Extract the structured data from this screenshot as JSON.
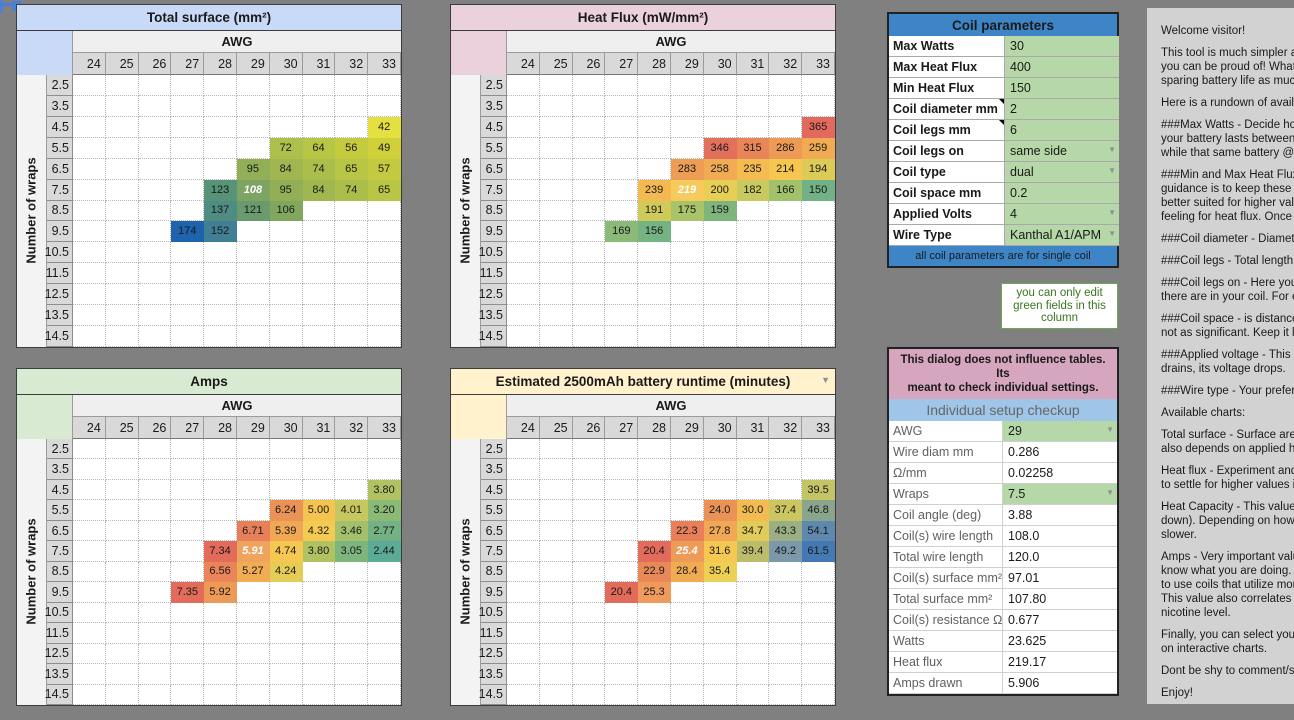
{
  "selection_marker": {
    "color": "#4a7fd4"
  },
  "tables": [
    {
      "id": "total-surface",
      "title": "Total surface (mm²)",
      "accent": "#c9daf8",
      "awg_label": "AWG",
      "side_label": "Number of wraps",
      "columns": [
        "24",
        "25",
        "26",
        "27",
        "28",
        "29",
        "30",
        "31",
        "32",
        "33"
      ],
      "rows": [
        "2.5",
        "3.5",
        "4.5",
        "5.5",
        "6.5",
        "7.5",
        "8.5",
        "9.5",
        "10.5",
        "11.5",
        "12.5",
        "13.5",
        "14.5"
      ],
      "filter_arrow": false,
      "selected": [
        "7.5",
        "29"
      ],
      "cells": [
        [
          "4.5",
          "33",
          "42",
          "#e4e03f"
        ],
        [
          "5.5",
          "30",
          "72",
          "#adc04b"
        ],
        [
          "5.5",
          "31",
          "64",
          "#b9c645"
        ],
        [
          "5.5",
          "32",
          "56",
          "#c5cb3f"
        ],
        [
          "5.5",
          "33",
          "49",
          "#cfd03a"
        ],
        [
          "6.5",
          "29",
          "95",
          "#92ae56"
        ],
        [
          "6.5",
          "30",
          "84",
          "#9fb651"
        ],
        [
          "6.5",
          "31",
          "74",
          "#abbe4b"
        ],
        [
          "6.5",
          "32",
          "65",
          "#b8c545"
        ],
        [
          "6.5",
          "33",
          "57",
          "#c3ca40"
        ],
        [
          "7.5",
          "28",
          "123",
          "#579377"
        ],
        [
          "7.5",
          "29",
          "108",
          "#7ea464"
        ],
        [
          "7.5",
          "30",
          "95",
          "#92ae56"
        ],
        [
          "7.5",
          "31",
          "84",
          "#9fb651"
        ],
        [
          "7.5",
          "32",
          "74",
          "#abbe4b"
        ],
        [
          "7.5",
          "33",
          "65",
          "#b8c545"
        ],
        [
          "8.5",
          "28",
          "137",
          "#4e8c84"
        ],
        [
          "8.5",
          "29",
          "121",
          "#6a9b6f"
        ],
        [
          "8.5",
          "30",
          "106",
          "#81a75f"
        ],
        [
          "9.5",
          "27",
          "174",
          "#1e63ae"
        ],
        [
          "9.5",
          "28",
          "152",
          "#417f94"
        ]
      ]
    },
    {
      "id": "heat-flux",
      "title": "Heat Flux (mW/mm²)",
      "accent": "#ead1dc",
      "awg_label": "AWG",
      "side_label": "Number of wraps",
      "columns": [
        "24",
        "25",
        "26",
        "27",
        "28",
        "29",
        "30",
        "31",
        "32",
        "33"
      ],
      "rows": [
        "2.5",
        "3.5",
        "4.5",
        "5.5",
        "6.5",
        "7.5",
        "8.5",
        "9.5",
        "10.5",
        "11.5",
        "12.5",
        "13.5",
        "14.5"
      ],
      "filter_arrow": false,
      "selected": [
        "7.5",
        "29"
      ],
      "cells": [
        [
          "4.5",
          "33",
          "365",
          "#e26a5d"
        ],
        [
          "5.5",
          "30",
          "346",
          "#e2705c"
        ],
        [
          "5.5",
          "31",
          "315",
          "#e8865a"
        ],
        [
          "5.5",
          "32",
          "286",
          "#ed9a56"
        ],
        [
          "5.5",
          "33",
          "259",
          "#f1ac53"
        ],
        [
          "6.5",
          "29",
          "283",
          "#ee9d55"
        ],
        [
          "6.5",
          "30",
          "258",
          "#f1ac53"
        ],
        [
          "6.5",
          "31",
          "235",
          "#f4bb51"
        ],
        [
          "6.5",
          "32",
          "214",
          "#f6c750"
        ],
        [
          "6.5",
          "33",
          "194",
          "#dccb56"
        ],
        [
          "7.5",
          "28",
          "239",
          "#f4b951"
        ],
        [
          "7.5",
          "29",
          "219",
          "#f7ca5c"
        ],
        [
          "7.5",
          "30",
          "200",
          "#e7ce54"
        ],
        [
          "7.5",
          "31",
          "182",
          "#c8c95f"
        ],
        [
          "7.5",
          "32",
          "166",
          "#a2c16b"
        ],
        [
          "7.5",
          "33",
          "150",
          "#72b185"
        ],
        [
          "8.5",
          "28",
          "191",
          "#d0ca5a"
        ],
        [
          "8.5",
          "29",
          "175",
          "#a9c368"
        ],
        [
          "8.5",
          "30",
          "159",
          "#7fb57d"
        ],
        [
          "9.5",
          "27",
          "169",
          "#8bb976"
        ],
        [
          "9.5",
          "28",
          "156",
          "#76b382"
        ]
      ]
    },
    {
      "id": "amps",
      "title": "Amps",
      "accent": "#d9ead3",
      "awg_label": "AWG",
      "side_label": "Number of wraps",
      "columns": [
        "24",
        "25",
        "26",
        "27",
        "28",
        "29",
        "30",
        "31",
        "32",
        "33"
      ],
      "rows": [
        "2.5",
        "3.5",
        "4.5",
        "5.5",
        "6.5",
        "7.5",
        "8.5",
        "9.5",
        "10.5",
        "11.5",
        "12.5",
        "13.5",
        "14.5"
      ],
      "filter_arrow": false,
      "selected": [
        "7.5",
        "29"
      ],
      "cells": [
        [
          "4.5",
          "33",
          "3.80",
          "#b1c263"
        ],
        [
          "5.5",
          "30",
          "6.24",
          "#eb9356"
        ],
        [
          "5.5",
          "31",
          "5.00",
          "#f5c350"
        ],
        [
          "5.5",
          "32",
          "4.01",
          "#c6c75f"
        ],
        [
          "5.5",
          "33",
          "3.20",
          "#8bb976"
        ],
        [
          "6.5",
          "29",
          "6.71",
          "#e78059"
        ],
        [
          "6.5",
          "30",
          "5.39",
          "#f0a854"
        ],
        [
          "6.5",
          "31",
          "4.32",
          "#f4ca52"
        ],
        [
          "6.5",
          "32",
          "3.46",
          "#a3c06c"
        ],
        [
          "6.5",
          "33",
          "2.77",
          "#74b285"
        ],
        [
          "7.5",
          "28",
          "7.34",
          "#e26b5c"
        ],
        [
          "7.5",
          "29",
          "5.91",
          "#efa35c"
        ],
        [
          "7.5",
          "30",
          "4.74",
          "#f6c851"
        ],
        [
          "7.5",
          "31",
          "3.80",
          "#b1c263"
        ],
        [
          "7.5",
          "32",
          "3.05",
          "#7eb57d"
        ],
        [
          "7.5",
          "33",
          "2.44",
          "#5cab97"
        ],
        [
          "8.5",
          "28",
          "6.56",
          "#e98558"
        ],
        [
          "8.5",
          "29",
          "5.27",
          "#f1ad53"
        ],
        [
          "8.5",
          "30",
          "4.24",
          "#e5cd55"
        ],
        [
          "9.5",
          "27",
          "7.35",
          "#e26b5c"
        ],
        [
          "9.5",
          "28",
          "5.92",
          "#ed9a56"
        ]
      ]
    },
    {
      "id": "battery-runtime",
      "title": "Estimated 2500mAh battery runtime (minutes)",
      "accent": "#fff2cc",
      "awg_label": "AWG",
      "side_label": "Number of wraps",
      "columns": [
        "24",
        "25",
        "26",
        "27",
        "28",
        "29",
        "30",
        "31",
        "32",
        "33"
      ],
      "rows": [
        "2.5",
        "3.5",
        "4.5",
        "5.5",
        "6.5",
        "7.5",
        "8.5",
        "9.5",
        "10.5",
        "11.5",
        "12.5",
        "13.5",
        "14.5"
      ],
      "filter_arrow": true,
      "selected": [
        "7.5",
        "29"
      ],
      "cells": [
        [
          "4.5",
          "33",
          "39.5",
          "#c2c465"
        ],
        [
          "5.5",
          "30",
          "24.0",
          "#eb9356"
        ],
        [
          "5.5",
          "31",
          "30.0",
          "#f3bc53"
        ],
        [
          "5.5",
          "32",
          "37.4",
          "#cbc661"
        ],
        [
          "5.5",
          "33",
          "46.8",
          "#8aa58e"
        ],
        [
          "6.5",
          "29",
          "22.3",
          "#e87f59"
        ],
        [
          "6.5",
          "30",
          "27.8",
          "#f0a854"
        ],
        [
          "6.5",
          "31",
          "34.7",
          "#e2cb58"
        ],
        [
          "6.5",
          "32",
          "43.3",
          "#9cae83"
        ],
        [
          "6.5",
          "33",
          "54.1",
          "#5f88ae"
        ],
        [
          "7.5",
          "28",
          "20.4",
          "#e26b5c"
        ],
        [
          "7.5",
          "29",
          "25.4",
          "#ee9b58"
        ],
        [
          "7.5",
          "30",
          "31.6",
          "#f5c853"
        ],
        [
          "7.5",
          "31",
          "39.4",
          "#bcbd6c"
        ],
        [
          "7.5",
          "32",
          "49.2",
          "#7b99a9"
        ],
        [
          "7.5",
          "33",
          "61.5",
          "#4579b4"
        ],
        [
          "8.5",
          "28",
          "22.9",
          "#e98957"
        ],
        [
          "8.5",
          "29",
          "28.4",
          "#f1ac53"
        ],
        [
          "8.5",
          "30",
          "35.4",
          "#eed054"
        ],
        [
          "9.5",
          "27",
          "20.4",
          "#e26b5c"
        ],
        [
          "9.5",
          "28",
          "25.3",
          "#f09a5e"
        ]
      ]
    }
  ],
  "coil_parameters": {
    "title": "Coil parameters",
    "header_bg": "#3d85c6",
    "editable_bg": "#b6d7a8",
    "rows": [
      {
        "label": "Max Watts",
        "value": "30",
        "editable": true,
        "dropdown": false,
        "comment": false
      },
      {
        "label": "Max Heat Flux",
        "value": "400",
        "editable": true,
        "dropdown": false,
        "comment": false
      },
      {
        "label": "Min Heat Flux",
        "value": "150",
        "editable": true,
        "dropdown": false,
        "comment": false
      },
      {
        "label": "Coil diameter mm",
        "value": "2",
        "editable": true,
        "dropdown": false,
        "comment": true
      },
      {
        "label": "Coil legs mm",
        "value": "6",
        "editable": true,
        "dropdown": false,
        "comment": true
      },
      {
        "label": "Coil legs on",
        "value": "same side",
        "editable": true,
        "dropdown": true,
        "comment": false
      },
      {
        "label": "Coil type",
        "value": "dual",
        "editable": true,
        "dropdown": true,
        "comment": false
      },
      {
        "label": "Coil space mm",
        "value": "0.2",
        "editable": true,
        "dropdown": false,
        "comment": false
      },
      {
        "label": "Applied Volts",
        "value": "4",
        "editable": true,
        "dropdown": true,
        "comment": false
      },
      {
        "label": "Wire Type",
        "value": "Kanthal A1/APM",
        "editable": true,
        "dropdown": true,
        "comment": false
      }
    ],
    "footer": "all coil parameters are for single coil"
  },
  "note": {
    "lines": [
      "you can only edit",
      "green fields in this",
      "column"
    ],
    "color": "#38761d"
  },
  "checkup": {
    "notice_lines": [
      "This dialog does not influence tables. Its",
      "meant to check individual settings."
    ],
    "notice_bg": "#d5a6bd",
    "title": "Individual setup checkup",
    "title_bg": "#9fc5e8",
    "rows": [
      {
        "label": "AWG",
        "value": "29",
        "editable": true,
        "dropdown": true
      },
      {
        "label": "Wire diam mm",
        "value": "0.286",
        "editable": false,
        "dropdown": false
      },
      {
        "label": "Ω/mm",
        "value": "0.02258",
        "editable": false,
        "dropdown": false
      },
      {
        "label": "Wraps",
        "value": "7.5",
        "editable": true,
        "dropdown": true
      },
      {
        "label": "Coil angle (deg)",
        "value": "3.88",
        "editable": false,
        "dropdown": false
      },
      {
        "label": "Coil(s) wire length",
        "value": "108.0",
        "editable": false,
        "dropdown": false
      },
      {
        "label": "Total wire length",
        "value": "120.0",
        "editable": false,
        "dropdown": false
      },
      {
        "label": "Coil(s) surface mm²",
        "value": "97.01",
        "editable": false,
        "dropdown": false
      },
      {
        "label": "Total surface mm²",
        "value": "107.80",
        "editable": false,
        "dropdown": false
      },
      {
        "label": "Coil(s) resistance Ω",
        "value": "0.677",
        "editable": false,
        "dropdown": false
      },
      {
        "label": "Watts",
        "value": "23.625",
        "editable": false,
        "dropdown": false
      },
      {
        "label": "Heat flux",
        "value": "219.17",
        "editable": false,
        "dropdown": false
      },
      {
        "label": "Amps drawn",
        "value": "5.906",
        "editable": false,
        "dropdown": false
      }
    ]
  },
  "info": {
    "paragraphs": [
      [
        "Welcome visitor!"
      ],
      [
        "This tool is much simpler and",
        "you can be proud of! What is",
        "sparing battery life as much a"
      ],
      [
        "Here is a rundown of availabl"
      ],
      [
        "###Max Watts - Decide how m",
        "your battery lasts between re",
        "while that same battery @20"
      ],
      [
        "###Min and Max Heat Flux - H",
        "guidance is to keep these valu",
        "better suited for higher values",
        "feeling for heat flux. Once yo"
      ],
      [
        "###Coil diameter - Diameter o"
      ],
      [
        "###Coil legs - Total length of"
      ],
      [
        "###Coil legs on - Here you ca",
        "there are in your coil. For exa"
      ],
      [
        "###Coil space - is distance be",
        "not as significant. Keep it low"
      ],
      [
        "###Applied voltage - This par",
        "drains, its voltage drops."
      ],
      [
        "###Wire type - Your preferre"
      ],
      [
        "Available charts:"
      ],
      [
        "Total surface - Surface area is",
        "also depends on applied heat"
      ],
      [
        "Heat flux - Experiment and fi",
        "to settle for higher values if y"
      ],
      [
        "Heat Capacity - This value is o",
        "down). Depending on how rea",
        "slower."
      ],
      [
        "Amps - Very important value!",
        "know what you are doing. For",
        "to use coils that utilize more",
        "This value also correlates with",
        "nicotine level."
      ],
      [
        "Finally, you can select your co",
        "on interactive charts."
      ],
      [
        "Dont be shy to comment/sugg"
      ],
      [
        "Enjoy!"
      ]
    ]
  }
}
